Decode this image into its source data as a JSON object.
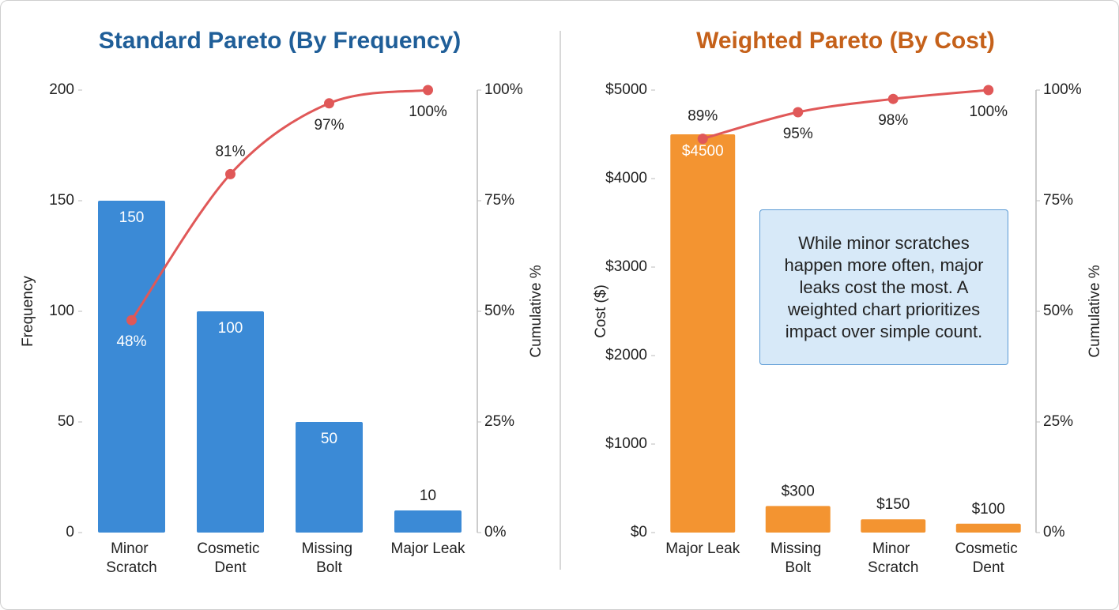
{
  "chart_data": [
    {
      "type": "pareto",
      "title": "Standard Pareto (By Frequency)",
      "categories": [
        "Minor Scratch",
        "Cosmetic Dent",
        "Missing Bolt",
        "Major Leak"
      ],
      "values": [
        150,
        100,
        50,
        10
      ],
      "color": "#3b8ad6",
      "cumulative": [
        48,
        81,
        97,
        100
      ],
      "cumulative_labels": [
        "48%",
        "81%",
        "97%",
        "100%"
      ],
      "line_color": "#e05858",
      "ylabel": "Frequency",
      "y2label": "Cumulative %",
      "ylim": [
        0,
        200
      ],
      "yticks": [
        0,
        50,
        100,
        150,
        200
      ],
      "y2lim": [
        0,
        100
      ],
      "y2ticks": [
        {
          "value": 0,
          "label": "0%"
        },
        {
          "value": 25,
          "label": "25%"
        },
        {
          "value": 50,
          "label": "50%"
        },
        {
          "value": 75,
          "label": "75%"
        },
        {
          "value": 100,
          "label": "100%"
        }
      ]
    },
    {
      "type": "pareto",
      "title": "Weighted Pareto (By Cost)",
      "categories": [
        "Major Leak",
        "Missing Bolt",
        "Minor Scratch",
        "Cosmetic Dent"
      ],
      "values": [
        4500,
        300,
        150,
        100
      ],
      "value_labels": [
        "$4500",
        "$300",
        "$150",
        "$100"
      ],
      "color": "#f39431",
      "cumulative": [
        89,
        95,
        98,
        100
      ],
      "cumulative_labels": [
        "89%",
        "95%",
        "98%",
        "100%"
      ],
      "line_color": "#e05858",
      "ylabel": "Cost ($)",
      "y2label": "Cumulative %",
      "ylim": [
        0,
        5000
      ],
      "yticks": [
        {
          "value": 0,
          "label": "$0"
        },
        {
          "value": 1000,
          "label": "$1000"
        },
        {
          "value": 2000,
          "label": "$2000"
        },
        {
          "value": 3000,
          "label": "$3000"
        },
        {
          "value": 4000,
          "label": "$4000"
        },
        {
          "value": 5000,
          "label": "$5000"
        }
      ],
      "y2lim": [
        0,
        100
      ],
      "y2ticks": [
        {
          "value": 0,
          "label": "0%"
        },
        {
          "value": 25,
          "label": "25%"
        },
        {
          "value": 50,
          "label": "50%"
        },
        {
          "value": 75,
          "label": "75%"
        },
        {
          "value": 100,
          "label": "100%"
        }
      ],
      "annotation": "While minor scratches happen more often, major leaks cost the most. A weighted chart prioritizes impact over simple count."
    }
  ]
}
